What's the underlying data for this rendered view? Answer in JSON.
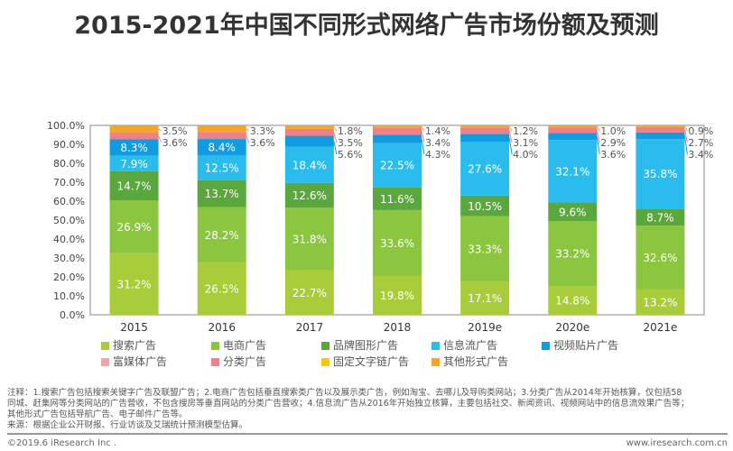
{
  "title": "2015-2021年中国不同形式网络广告市场份额及预测",
  "chart_data": {
    "type": "bar",
    "stacked": true,
    "percent": true,
    "categories": [
      "2015",
      "2016",
      "2017",
      "2018",
      "2019e",
      "2020e",
      "2021e"
    ],
    "ylim": [
      0,
      100
    ],
    "yticks": [
      "0.0%",
      "10.0%",
      "20.0%",
      "30.0%",
      "40.0%",
      "50.0%",
      "60.0%",
      "70.0%",
      "80.0%",
      "90.0%",
      "100.0%"
    ],
    "legend_position": "bottom",
    "series": [
      {
        "name": "搜索广告",
        "color": "#a9cc3a",
        "values": [
          31.2,
          26.5,
          22.7,
          19.8,
          17.1,
          14.8,
          13.2
        ]
      },
      {
        "name": "电商广告",
        "color": "#8cc540",
        "values": [
          26.9,
          28.2,
          31.8,
          33.6,
          33.3,
          33.2,
          32.6
        ]
      },
      {
        "name": "品牌图形广告",
        "color": "#5aa83d",
        "values": [
          14.7,
          13.7,
          12.6,
          11.6,
          10.5,
          9.6,
          8.7
        ]
      },
      {
        "name": "信息流广告",
        "color": "#2bbcee",
        "values": [
          7.9,
          12.5,
          18.4,
          22.5,
          27.6,
          32.1,
          35.8
        ]
      },
      {
        "name": "视频贴片广告",
        "color": "#109ce0",
        "values": [
          8.3,
          8.4,
          5.6,
          4.3,
          4.0,
          3.6,
          3.4
        ]
      },
      {
        "name": "富媒体广告",
        "color": "#f4a3ab",
        "values": [
          null,
          null,
          null,
          null,
          null,
          null,
          null
        ]
      },
      {
        "name": "分类广告",
        "color": "#ee8088",
        "values": [
          3.6,
          3.6,
          3.5,
          3.4,
          3.1,
          2.9,
          2.7
        ]
      },
      {
        "name": "固定文字链广告",
        "color": "#f9c80e",
        "values": [
          null,
          null,
          null,
          null,
          null,
          null,
          null
        ]
      },
      {
        "name": "其他形式广告",
        "color": "#f6a623",
        "values": [
          3.5,
          3.3,
          1.8,
          1.4,
          1.2,
          1.0,
          0.9
        ]
      }
    ]
  },
  "notes": [
    "注释：1.搜索广告包括搜索关键字广告及联盟广告；2.电商广告包括垂直搜索类广告以及展示类广告，例如淘宝、去哪儿及导购类网站；3.分类广告从2014年开始核算，仅包括58",
    "同城、赶集网等分类网站的广告营收，不包含搜房等垂直网站的分类广告营收；4.信息流广告从2016年开始独立核算，主要包括社交、新闻资讯、视频网站中的信息流效果广告等；",
    "其他形式广告包括导航广告、电子邮件广告等。",
    "来源：根据企业公开财报、行业访谈及艾瑞统计预测模型估算。"
  ],
  "footer": {
    "copyright": "©2019.6 iResearch Inc .",
    "website": "www.iresearch.com.cn"
  }
}
